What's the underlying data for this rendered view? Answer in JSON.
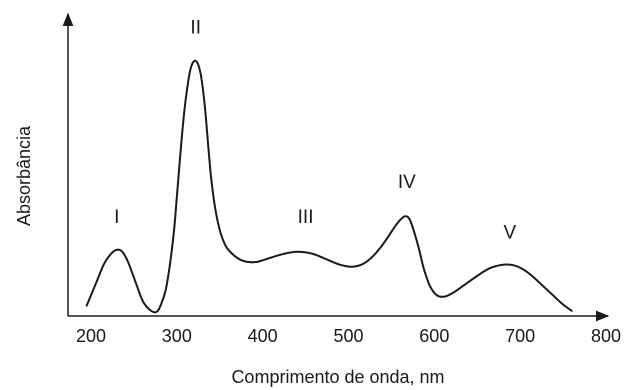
{
  "chart_data": {
    "type": "line",
    "title": "",
    "xlabel": "Comprimento de onda, nm",
    "ylabel": "Absorbância",
    "xlim": [
      180,
      820
    ],
    "ylim": [
      0,
      1
    ],
    "x_ticks": [
      200,
      300,
      400,
      500,
      600,
      700,
      800
    ],
    "y_ticks": [],
    "grid": false,
    "legend": "none",
    "line_color": "#1a1a1a",
    "series": [
      {
        "x": [
          195,
          205,
          215,
          222,
          229,
          236,
          243,
          252,
          260,
          268,
          276,
          281,
          287,
          292,
          297,
          301,
          305,
          309,
          313,
          316,
          319,
          322,
          325,
          328,
          331,
          334,
          337,
          340,
          344,
          348,
          352,
          357,
          363,
          370,
          377,
          385,
          395,
          410,
          425,
          440,
          455,
          465,
          477,
          490,
          503,
          515,
          525,
          535,
          545,
          553,
          560,
          566,
          571,
          576,
          582,
          588,
          595,
          603,
          612,
          622,
          635,
          650,
          665,
          680,
          692,
          702,
          712,
          722,
          735,
          748,
          760
        ],
        "y": [
          0.04,
          0.12,
          0.2,
          0.235,
          0.255,
          0.25,
          0.21,
          0.13,
          0.06,
          0.025,
          0.015,
          0.04,
          0.1,
          0.2,
          0.34,
          0.5,
          0.66,
          0.8,
          0.9,
          0.955,
          0.98,
          0.985,
          0.97,
          0.93,
          0.86,
          0.76,
          0.64,
          0.53,
          0.43,
          0.36,
          0.31,
          0.27,
          0.245,
          0.225,
          0.213,
          0.208,
          0.21,
          0.226,
          0.24,
          0.248,
          0.243,
          0.232,
          0.215,
          0.198,
          0.19,
          0.198,
          0.22,
          0.255,
          0.3,
          0.34,
          0.37,
          0.385,
          0.375,
          0.33,
          0.26,
          0.18,
          0.115,
          0.08,
          0.075,
          0.09,
          0.12,
          0.155,
          0.185,
          0.198,
          0.196,
          0.183,
          0.16,
          0.13,
          0.09,
          0.05,
          0.02
        ]
      }
    ],
    "annotations": [
      {
        "label": "I",
        "x": 230,
        "y": 0.36
      },
      {
        "label": "II",
        "x": 322,
        "y": 1.09
      },
      {
        "label": "III",
        "x": 450,
        "y": 0.36
      },
      {
        "label": "IV",
        "x": 568,
        "y": 0.495
      },
      {
        "label": "V",
        "x": 688,
        "y": 0.3
      }
    ]
  }
}
